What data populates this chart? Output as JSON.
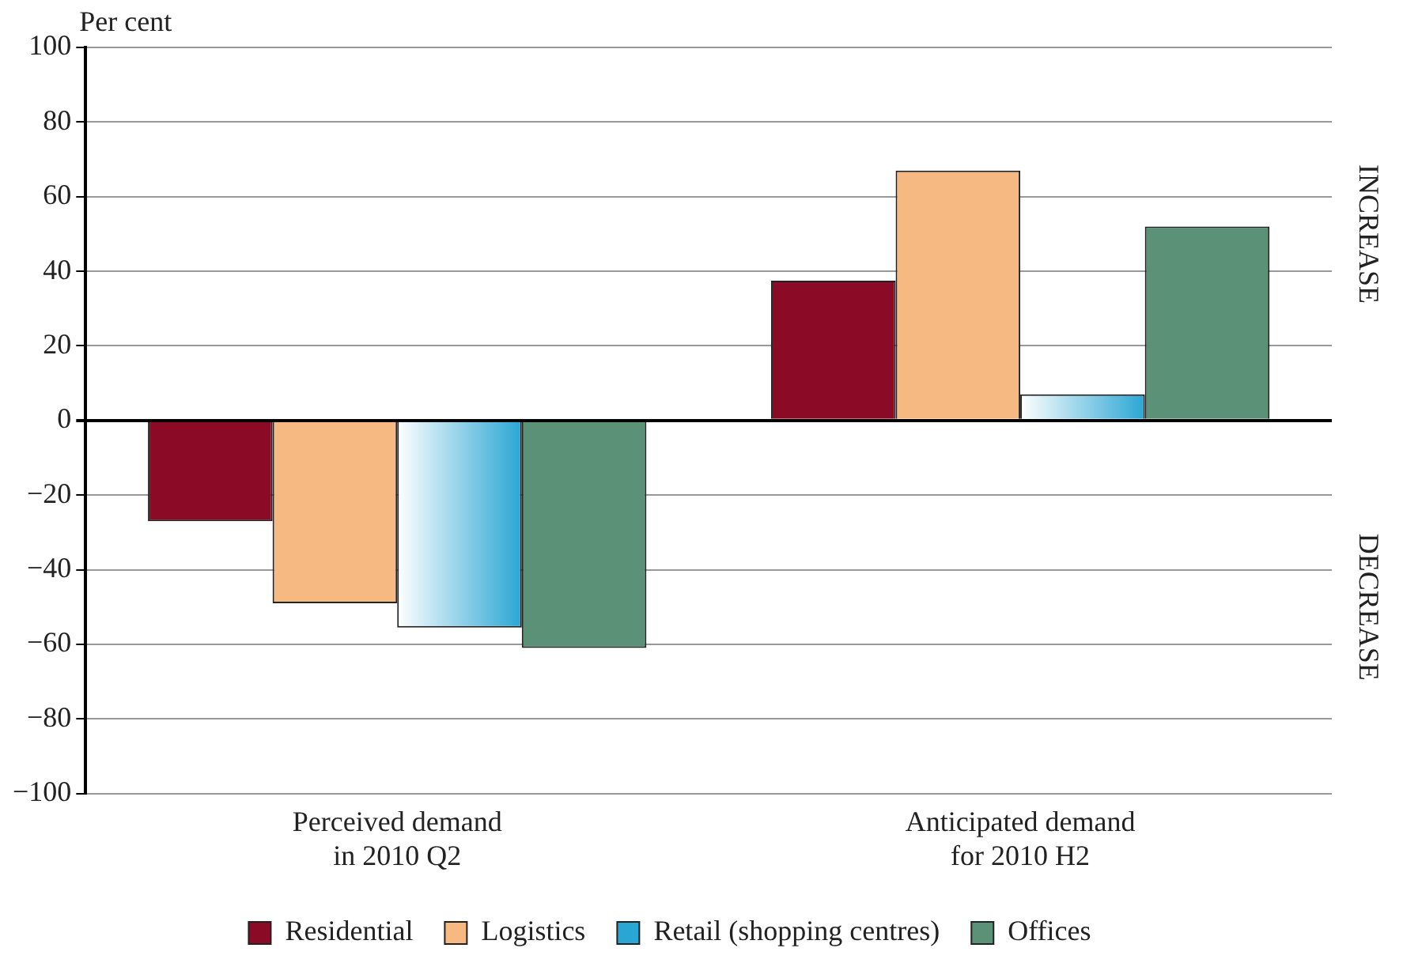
{
  "chart_data": {
    "type": "bar",
    "ylabel": "Per cent",
    "categories": [
      "Perceived demand\nin 2010 Q2",
      "Anticipated demand\nfor 2010 H2"
    ],
    "series": [
      {
        "name": "Residential",
        "color": "#8b0a26",
        "values": [
          -27,
          37.5
        ]
      },
      {
        "name": "Logistics",
        "color": "#f7b982",
        "values": [
          -49,
          67
        ]
      },
      {
        "name": "Retail (shopping centres)",
        "color": "#2aa6d4",
        "values": [
          -55.5,
          7
        ]
      },
      {
        "name": "Offices",
        "color": "#5a9177",
        "values": [
          -61,
          52
        ]
      }
    ],
    "ylim": [
      -100,
      100
    ],
    "yticks": [
      -100,
      -80,
      -60,
      -40,
      -20,
      0,
      20,
      40,
      60,
      80,
      100
    ],
    "grid": "y",
    "legend": "bottom",
    "annotations": [
      "INCREASE",
      "DECREASE"
    ]
  }
}
